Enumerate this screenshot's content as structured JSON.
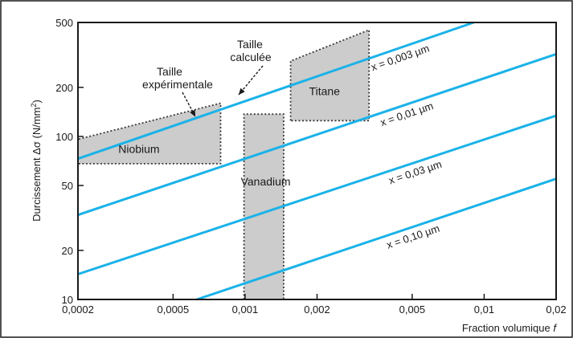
{
  "chart_data": {
    "type": "line",
    "xscale": "log",
    "yscale": "log",
    "xlim": [
      0.0002,
      0.02
    ],
    "ylim": [
      10,
      500
    ],
    "xlabel": "Fraction volumique f",
    "ylabel": "Durcissement Δσ (N/mm²)",
    "x_ticks": [
      {
        "value": 0.0002,
        "label": "0,0002"
      },
      {
        "value": 0.0005,
        "label": "0,0005"
      },
      {
        "value": 0.001,
        "label": "0,001"
      },
      {
        "value": 0.002,
        "label": "0,002"
      },
      {
        "value": 0.005,
        "label": "0,005"
      },
      {
        "value": 0.01,
        "label": "0,01"
      },
      {
        "value": 0.02,
        "label": "0,02"
      }
    ],
    "y_ticks": [
      {
        "value": 10,
        "label": "10"
      },
      {
        "value": 20,
        "label": "20"
      },
      {
        "value": 50,
        "label": "50"
      },
      {
        "value": 100,
        "label": "100"
      },
      {
        "value": 200,
        "label": "200"
      },
      {
        "value": 500,
        "label": "500"
      }
    ],
    "series": [
      {
        "name": "x = 0,003 µm",
        "x": [
          0.0002,
          0.00904
        ],
        "y": [
          73,
          500
        ]
      },
      {
        "name": "x = 0,01 µm",
        "x": [
          0.0002,
          0.02
        ],
        "y": [
          33,
          320
        ]
      },
      {
        "name": "x = 0,03 µm",
        "x": [
          0.0002,
          0.02
        ],
        "y": [
          14.3,
          134
        ]
      },
      {
        "name": "x = 0,10 µm",
        "x": [
          0.000628,
          0.02
        ],
        "y": [
          10,
          55
        ]
      }
    ],
    "regions": [
      {
        "name": "Niobium",
        "points": [
          [
            0.0002,
            68
          ],
          [
            0.0002,
            96
          ],
          [
            0.00079,
            160
          ],
          [
            0.00079,
            68
          ]
        ]
      },
      {
        "name": "Vanadium",
        "points": [
          [
            0.00099,
            10
          ],
          [
            0.00099,
            137
          ],
          [
            0.00145,
            137
          ],
          [
            0.00145,
            10
          ]
        ]
      },
      {
        "name": "Titane",
        "points": [
          [
            0.00155,
            125
          ],
          [
            0.00155,
            290
          ],
          [
            0.0033,
            450
          ],
          [
            0.0033,
            125
          ]
        ]
      }
    ],
    "annotations": [
      {
        "text": "Taille expérimentale",
        "target": [
          0.00062,
          132
        ]
      },
      {
        "text": "Taille calculée",
        "target": [
          0.00094,
          180
        ]
      }
    ],
    "colors": {
      "line": "#1ab2e8",
      "region_fill": "#cccccc",
      "region_stroke": "#3a3a3a",
      "frame": "#1a1a1a"
    },
    "grid": false,
    "legend": "none"
  },
  "text": {
    "ylabel_main": "Durcissement Δσ (N/mm",
    "ylabel_sup": "2",
    "ylabel_end": ")",
    "xlabel_main": "Fraction volumique ",
    "xlabel_var": "f",
    "annot_exp_line1": "Taille",
    "annot_exp_line2": "expérimentale",
    "annot_calc_line1": "Taille",
    "annot_calc_line2": "calculée"
  }
}
